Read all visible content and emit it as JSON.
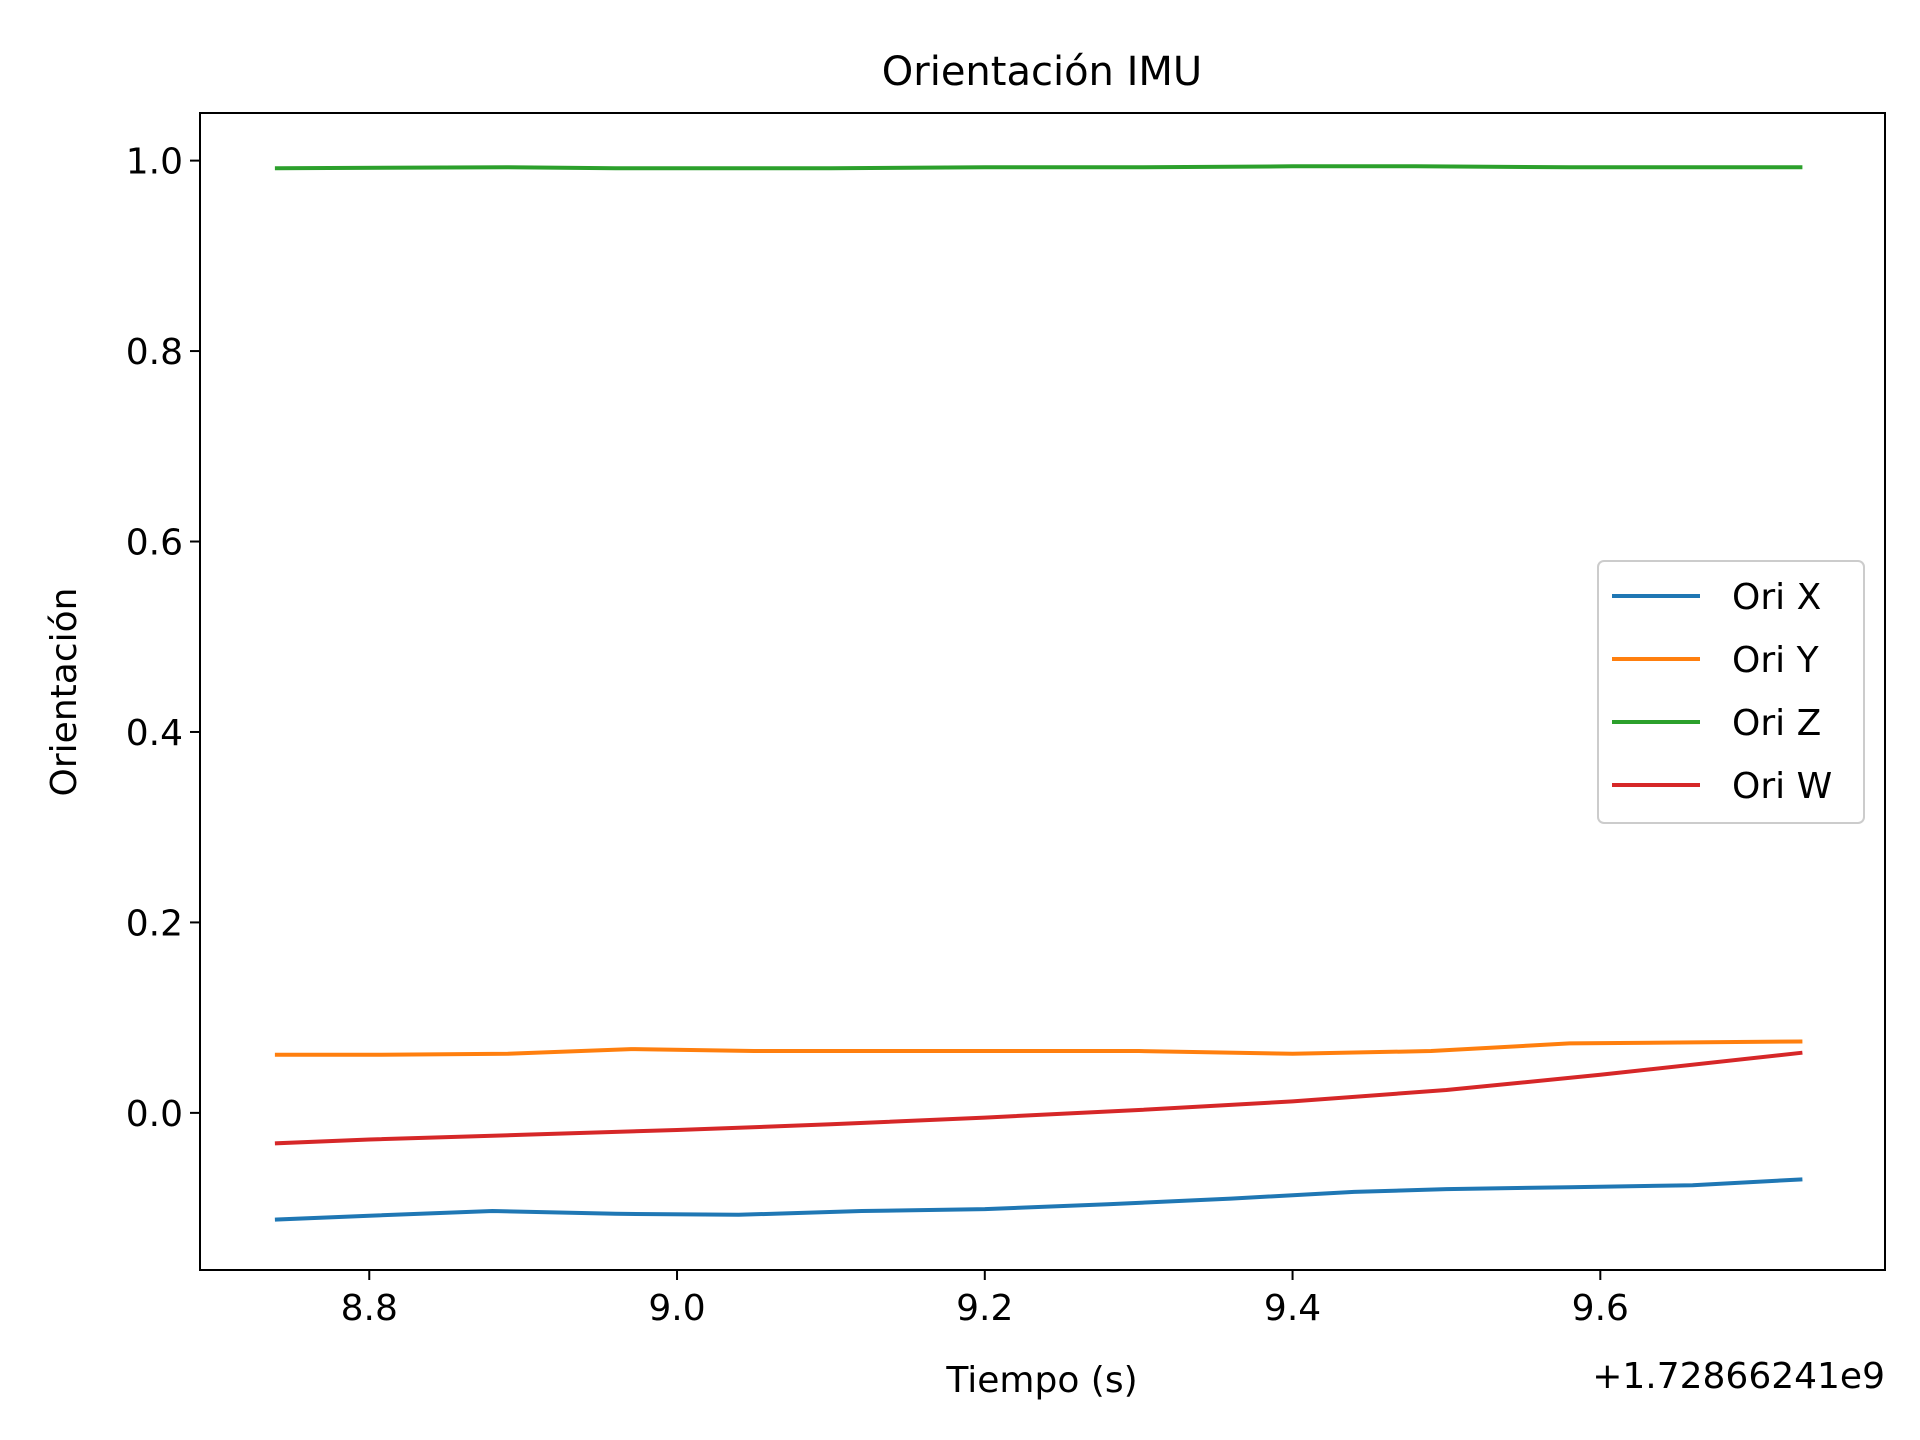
{
  "chart_data": {
    "type": "line",
    "title": "Orientación IMU",
    "xlabel": "Tiempo (s)",
    "ylabel": "Orientación",
    "x_offset_label": "+1.72866241e9",
    "xlim": [
      8.69,
      9.785
    ],
    "ylim": [
      -0.165,
      1.05
    ],
    "xticks": [
      8.8,
      9.0,
      9.2,
      9.4,
      9.6
    ],
    "xtick_labels": [
      "8.8",
      "9.0",
      "9.2",
      "9.4",
      "9.6"
    ],
    "yticks": [
      0.0,
      0.2,
      0.4,
      0.6,
      0.8,
      1.0
    ],
    "ytick_labels": [
      "0.0",
      "0.2",
      "0.4",
      "0.6",
      "0.8",
      "1.0"
    ],
    "grid": false,
    "legend_position": "center-right",
    "series": [
      {
        "name": "Ori X",
        "color": "#1f77b4",
        "x": [
          8.74,
          8.8,
          8.88,
          8.96,
          9.04,
          9.12,
          9.2,
          9.28,
          9.36,
          9.44,
          9.5,
          9.58,
          9.66,
          9.73
        ],
        "y": [
          -0.112,
          -0.108,
          -0.103,
          -0.106,
          -0.107,
          -0.103,
          -0.101,
          -0.096,
          -0.09,
          -0.083,
          -0.08,
          -0.078,
          -0.076,
          -0.07
        ]
      },
      {
        "name": "Ori Y",
        "color": "#ff7f0e",
        "x": [
          8.74,
          8.8,
          8.89,
          8.97,
          9.05,
          9.13,
          9.21,
          9.3,
          9.4,
          9.49,
          9.58,
          9.66,
          9.73
        ],
        "y": [
          0.061,
          0.061,
          0.062,
          0.067,
          0.065,
          0.065,
          0.065,
          0.065,
          0.062,
          0.065,
          0.073,
          0.074,
          0.075
        ]
      },
      {
        "name": "Ori Z",
        "color": "#2ca02c",
        "x": [
          8.74,
          8.89,
          8.96,
          9.1,
          9.2,
          9.3,
          9.4,
          9.48,
          9.58,
          9.73
        ],
        "y": [
          0.992,
          0.993,
          0.992,
          0.992,
          0.993,
          0.993,
          0.994,
          0.994,
          0.993,
          0.993
        ]
      },
      {
        "name": "Ori W",
        "color": "#d62728",
        "x": [
          8.74,
          8.8,
          8.9,
          9.0,
          9.1,
          9.2,
          9.3,
          9.4,
          9.5,
          9.6,
          9.73
        ],
        "y": [
          -0.032,
          -0.028,
          -0.023,
          -0.018,
          -0.012,
          -0.005,
          0.003,
          0.012,
          0.024,
          0.04,
          0.063
        ]
      }
    ]
  }
}
